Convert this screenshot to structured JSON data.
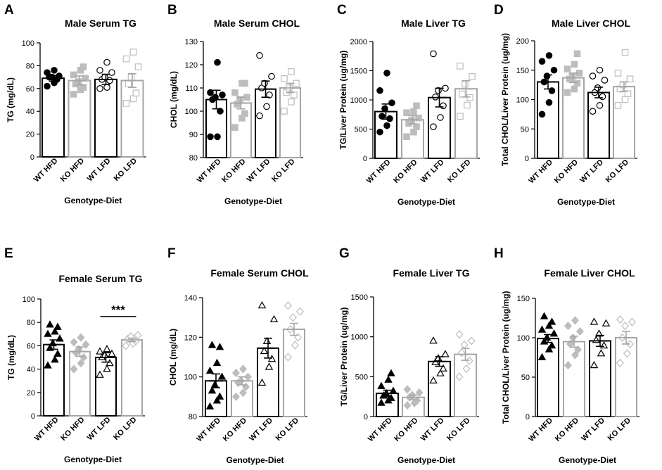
{
  "colors": {
    "black": "#000000",
    "gray": "#a6a6a6",
    "lightgray": "#bdbdbd"
  },
  "chart_data": [
    {
      "letter": "A",
      "type": "bar",
      "title": "Male Serum TG",
      "xlabel": "Genotype-Diet",
      "ylabel": "TG (mg/dL)",
      "categories": [
        "WT HFD",
        "KO HFD",
        "WT LFD",
        "KO LFD"
      ],
      "ylim": [
        0,
        100
      ],
      "yticks": [
        0,
        20,
        40,
        60,
        80,
        100
      ],
      "values": [
        69,
        67,
        68,
        67
      ],
      "errors": [
        2.5,
        4,
        4.5,
        6
      ],
      "points": [
        [
          62,
          65,
          68,
          70,
          70,
          71,
          74,
          76
        ],
        [
          55,
          59,
          61,
          64,
          66,
          69,
          72,
          76,
          79
        ],
        [
          60,
          61,
          67,
          68,
          70,
          74,
          76,
          83
        ],
        [
          47,
          51,
          56,
          64,
          70,
          79,
          86,
          92
        ]
      ]
    },
    {
      "letter": "B",
      "type": "bar",
      "title": "Male Serum CHOL",
      "xlabel": "Genotype-Diet",
      "ylabel": "CHOL (mg/dL)",
      "categories": [
        "WT HFD",
        "KO HFD",
        "WT LFD",
        "KO LFD"
      ],
      "ylim": [
        80,
        130
      ],
      "yticks": [
        80,
        90,
        100,
        110,
        120,
        130
      ],
      "values": [
        105,
        103.5,
        109.5,
        110
      ],
      "errors": [
        4,
        2.5,
        3.5,
        2
      ],
      "points": [
        [
          89,
          89,
          100,
          105,
          106,
          107,
          108,
          121
        ],
        [
          93,
          97,
          99,
          103,
          105,
          106,
          108,
          112,
          112
        ],
        [
          98,
          102,
          107,
          110,
          112,
          115,
          124
        ],
        [
          100,
          104,
          107,
          108,
          110,
          112,
          114,
          117
        ]
      ]
    },
    {
      "letter": "C",
      "type": "bar",
      "title": "Male Liver TG",
      "xlabel": "Genotype-Diet",
      "ylabel": "TG/Liver Protein (ug/mg)",
      "categories": [
        "WT HFD",
        "KO HFD",
        "WT LFD",
        "KO LFD"
      ],
      "ylim": [
        0,
        2000
      ],
      "yticks": [
        0,
        500,
        1000,
        1500,
        2000
      ],
      "values": [
        800,
        660,
        1040,
        1190
      ],
      "errors": [
        130,
        70,
        160,
        140
      ],
      "points": [
        [
          450,
          560,
          680,
          720,
          850,
          950,
          1160,
          1460
        ],
        [
          370,
          450,
          540,
          600,
          650,
          690,
          780,
          800,
          900
        ],
        [
          540,
          700,
          900,
          1050,
          1160,
          1200,
          1790
        ],
        [
          720,
          910,
          1040,
          1100,
          1270,
          1400,
          1580
        ]
      ]
    },
    {
      "letter": "D",
      "type": "bar",
      "title": "Male Liver CHOL",
      "xlabel": "Genotype-Diet",
      "ylabel": "Total CHOL/Liver Protein (ug/mg)",
      "categories": [
        "WT HFD",
        "KO HFD",
        "WT LFD",
        "KO LFD"
      ],
      "ylim": [
        0,
        200
      ],
      "yticks": [
        0,
        50,
        100,
        150,
        200
      ],
      "values": [
        130,
        137,
        112,
        122
      ],
      "errors": [
        12,
        8,
        9,
        8
      ],
      "points": [
        [
          75,
          95,
          115,
          130,
          140,
          150,
          165,
          175
        ],
        [
          112,
          118,
          128,
          135,
          140,
          145,
          152,
          160,
          178
        ],
        [
          80,
          90,
          105,
          112,
          120,
          133,
          140,
          150
        ],
        [
          90,
          100,
          110,
          118,
          125,
          135,
          145,
          180
        ]
      ]
    },
    {
      "letter": "E",
      "type": "bar",
      "title": "Female Serum TG",
      "xlabel": "Genotype-Diet",
      "ylabel": "TG (mg/dL)",
      "categories": [
        "WT HFD",
        "KO HFD",
        "WT LFD",
        "KO LFD"
      ],
      "ylim": [
        0,
        100
      ],
      "yticks": [
        0,
        20,
        40,
        60,
        80,
        100
      ],
      "values": [
        61,
        55,
        50,
        65
      ],
      "errors": [
        4,
        4,
        4,
        1.5
      ],
      "points": [
        [
          43,
          48,
          53,
          58,
          62,
          66,
          70,
          72,
          76,
          78
        ],
        [
          40,
          45,
          50,
          54,
          57,
          61,
          63,
          67
        ],
        [
          35,
          40,
          45,
          50,
          52,
          53,
          55,
          57
        ],
        [
          60,
          62,
          64,
          66,
          68,
          69
        ]
      ],
      "annotation": "***"
    },
    {
      "letter": "F",
      "type": "bar",
      "title": "Female Serum CHOL",
      "xlabel": "Genotype-Diet",
      "ylabel": "CHOL (mg/dL)",
      "categories": [
        "WT HFD",
        "KO HFD",
        "WT LFD",
        "KO LFD"
      ],
      "ylim": [
        80,
        140
      ],
      "yticks": [
        80,
        100,
        120,
        140
      ],
      "values": [
        98,
        98,
        114.5,
        124
      ],
      "errors": [
        3.5,
        2,
        5,
        3
      ],
      "points": [
        [
          85,
          88,
          90,
          93,
          96,
          100,
          103,
          107,
          115,
          116
        ],
        [
          90,
          92,
          95,
          97,
          98,
          100,
          102,
          104
        ],
        [
          97,
          105,
          109,
          113,
          118,
          129,
          136
        ],
        [
          110,
          116,
          120,
          124,
          130,
          133,
          136
        ]
      ]
    },
    {
      "letter": "G",
      "type": "bar",
      "title": "Female Liver TG",
      "xlabel": "Genotype-Diet",
      "ylabel": "TG/Liver Protein (ug/mg)",
      "categories": [
        "WT HFD",
        "KO HFD",
        "WT LFD",
        "KO LFD"
      ],
      "ylim": [
        0,
        1500
      ],
      "yticks": [
        0,
        500,
        1000,
        1500
      ],
      "values": [
        290,
        240,
        690,
        780
      ],
      "errors": [
        40,
        30,
        60,
        75
      ],
      "points": [
        [
          170,
          200,
          230,
          260,
          290,
          320,
          380,
          460,
          540
        ],
        [
          140,
          170,
          200,
          240,
          270,
          300,
          340
        ],
        [
          450,
          540,
          600,
          680,
          730,
          780,
          950
        ],
        [
          500,
          600,
          700,
          800,
          900,
          950,
          1030
        ]
      ]
    },
    {
      "letter": "H",
      "type": "bar",
      "title": "Female Liver CHOL",
      "xlabel": "Genotype-Diet",
      "ylabel": "Total CHOL/Liver Protein (ug/mg)",
      "categories": [
        "WT HFD",
        "KO HFD",
        "WT LFD",
        "KO LFD"
      ],
      "ylim": [
        0,
        150
      ],
      "yticks": [
        0,
        50,
        100,
        150
      ],
      "values": [
        99,
        95,
        96,
        100
      ],
      "errors": [
        5,
        7,
        7,
        8
      ],
      "points": [
        [
          75,
          85,
          90,
          95,
          100,
          105,
          110,
          115,
          120,
          127
        ],
        [
          65,
          78,
          85,
          92,
          100,
          108,
          115,
          122
        ],
        [
          65,
          80,
          90,
          97,
          105,
          118,
          120
        ],
        [
          68,
          80,
          92,
          100,
          115,
          120,
          123
        ]
      ]
    }
  ]
}
